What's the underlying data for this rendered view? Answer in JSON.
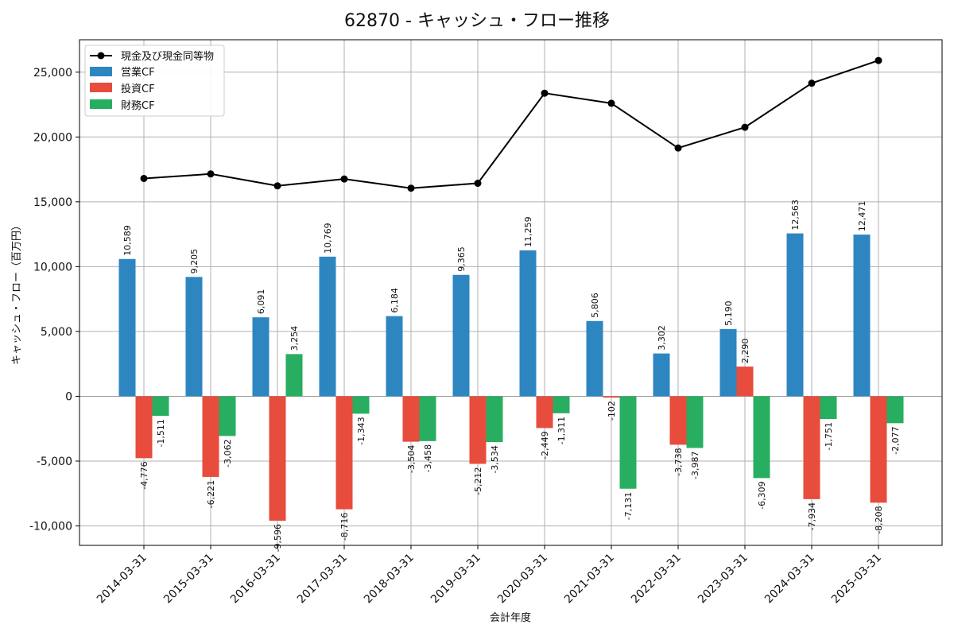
{
  "chart_data": {
    "type": "bar",
    "title": "62870 - キャッシュ・フロー推移",
    "xlabel": "会計年度",
    "ylabel": "キャッシュ・フロー（百万円）",
    "ylim": [
      -11500,
      27500
    ],
    "yticks": [
      -10000,
      -5000,
      0,
      5000,
      10000,
      15000,
      20000,
      25000
    ],
    "ytick_labels": [
      "-10,000",
      "-5,000",
      "0",
      "5,000",
      "10,000",
      "15,000",
      "20,000",
      "25,000"
    ],
    "grid": true,
    "legend_position": "top-left",
    "categories": [
      "2014-03-31",
      "2015-03-31",
      "2016-03-31",
      "2017-03-31",
      "2018-03-31",
      "2019-03-31",
      "2020-03-31",
      "2021-03-31",
      "2022-03-31",
      "2023-03-31",
      "2024-03-31",
      "2025-03-31"
    ],
    "series": [
      {
        "name": "営業CF",
        "kind": "bar",
        "color": "#2e86c1",
        "values": [
          10589,
          9205,
          6091,
          10769,
          6184,
          9365,
          11259,
          5806,
          3302,
          5190,
          12563,
          12471
        ],
        "labels": [
          "10,589",
          "9,205",
          "6,091",
          "10,769",
          "6,184",
          "9,365",
          "11,259",
          "5,806",
          "3,302",
          "5,190",
          "12,563",
          "12,471"
        ]
      },
      {
        "name": "投資CF",
        "kind": "bar",
        "color": "#e74c3c",
        "values": [
          -4776,
          -6221,
          -9596,
          -8716,
          -3504,
          -5212,
          -2449,
          -102,
          -3738,
          2290,
          -7934,
          -8208
        ],
        "labels": [
          "-4,776",
          "-6,221",
          "-9,596",
          "-8,716",
          "-3,504",
          "-5,212",
          "-2,449",
          "-102",
          "-3,738",
          "2,290",
          "-7,934",
          "-8,208"
        ]
      },
      {
        "name": "財務CF",
        "kind": "bar",
        "color": "#27ae60",
        "values": [
          -1511,
          -3062,
          3254,
          -1343,
          -3458,
          -3534,
          -1311,
          -7131,
          -3987,
          -6309,
          -1751,
          -2077
        ],
        "labels": [
          "-1,511",
          "-3,062",
          "3,254",
          "-1,343",
          "-3,458",
          "-3,534",
          "-1,311",
          "-7,131",
          "-3,987",
          "-6,309",
          "-1,751",
          "-2,077"
        ]
      },
      {
        "name": "現金及び現金同等物",
        "kind": "line",
        "color": "#000000",
        "values": [
          16800,
          17150,
          16230,
          16760,
          16050,
          16430,
          23380,
          22600,
          19150,
          20750,
          24150,
          25900
        ]
      }
    ]
  }
}
